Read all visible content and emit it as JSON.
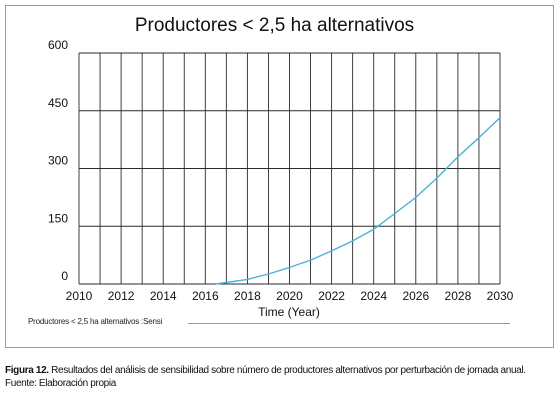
{
  "chart_data": {
    "type": "line",
    "title": "Productores < 2,5 ha alternativos",
    "xlabel": "Time (Year)",
    "ylabel": "",
    "xlim": [
      2010,
      2030
    ],
    "ylim": [
      0,
      600
    ],
    "x_ticks": [
      "2010",
      "2012",
      "2014",
      "2016",
      "2018",
      "2020",
      "2022",
      "2024",
      "2026",
      "2028",
      "2030"
    ],
    "y_ticks": [
      "600",
      "450",
      "300",
      "150",
      "0"
    ],
    "grid": true,
    "series": [
      {
        "name": "Productores < 2,5 ha alternativos :Sensi",
        "color": "#49b3d8",
        "x": [
          2016.5,
          2017,
          2018,
          2019,
          2020,
          2021,
          2022,
          2023,
          2024,
          2025,
          2026,
          2027,
          2028,
          2029,
          2030
        ],
        "values": [
          0,
          4,
          12,
          26,
          43,
          62,
          86,
          112,
          142,
          183,
          225,
          275,
          330,
          380,
          432
        ]
      }
    ]
  },
  "caption": {
    "label": "Figura 12.",
    "text": " Resultados del análisis de sensibilidad sobre número de productores alternativos por perturbación de jornada anual.",
    "source": "Fuente: Elaboración propia"
  }
}
